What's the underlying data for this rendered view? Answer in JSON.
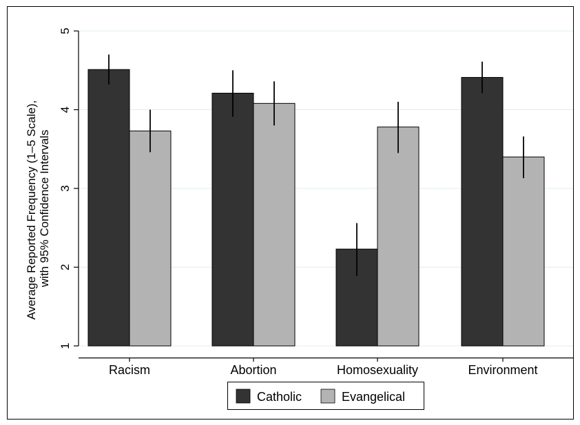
{
  "chart_data": {
    "type": "bar",
    "title": "",
    "xlabel": "",
    "ylabel_lines": [
      "Average Reported Frequency (1–5 Scale),",
      "with 95% Confidence Intervals"
    ],
    "categories": [
      "Racism",
      "Abortion",
      "Homosexuality",
      "Environment"
    ],
    "ylim": [
      1,
      5
    ],
    "yticks": [
      "1",
      "2",
      "3",
      "4",
      "5"
    ],
    "grid": true,
    "legend_position": "bottom",
    "series": [
      {
        "name": "Catholic",
        "color": "#333333",
        "values": [
          4.51,
          4.21,
          2.23,
          4.41
        ],
        "ci_low": [
          4.32,
          3.91,
          1.89,
          4.21
        ],
        "ci_high": [
          4.7,
          4.5,
          2.56,
          4.61
        ]
      },
      {
        "name": "Evangelical",
        "color": "#b3b3b3",
        "values": [
          3.73,
          4.08,
          3.78,
          3.4
        ],
        "ci_low": [
          3.46,
          3.8,
          3.45,
          3.13
        ],
        "ci_high": [
          4.0,
          4.36,
          4.1,
          3.66
        ]
      }
    ]
  }
}
